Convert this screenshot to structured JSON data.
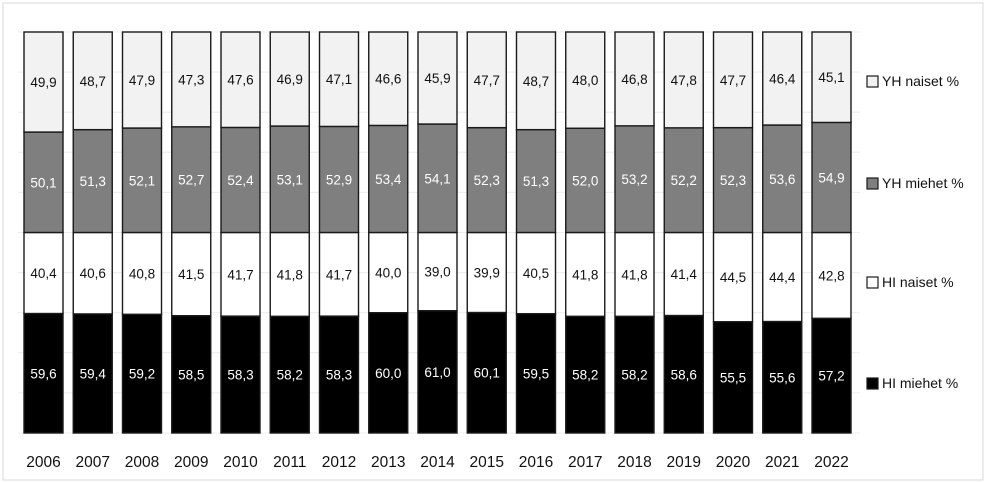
{
  "chart_data": {
    "type": "bar",
    "stacked": true,
    "categories": [
      "2006",
      "2007",
      "2008",
      "2009",
      "2010",
      "2011",
      "2012",
      "2013",
      "2014",
      "2015",
      "2016",
      "2017",
      "2018",
      "2019",
      "2020",
      "2021",
      "2022"
    ],
    "series": [
      {
        "name": "HI miehet %",
        "color": "#000000",
        "text_color": "#ffffff",
        "values": [
          59.6,
          59.4,
          59.2,
          58.5,
          58.3,
          58.2,
          58.3,
          60.0,
          61.0,
          60.1,
          59.5,
          58.2,
          58.2,
          58.6,
          55.5,
          55.6,
          57.2
        ],
        "labels": [
          "59,6",
          "59,4",
          "59,2",
          "58,5",
          "58,3",
          "58,2",
          "58,3",
          "60,0",
          "61,0",
          "60,1",
          "59,5",
          "58,2",
          "58,2",
          "58,6",
          "55,5",
          "55,6",
          "57,2"
        ]
      },
      {
        "name": "HI naiset %",
        "color": "#ffffff",
        "text_color": "#111111",
        "values": [
          40.4,
          40.6,
          40.8,
          41.5,
          41.7,
          41.8,
          41.7,
          40.0,
          39.0,
          39.9,
          40.5,
          41.8,
          41.8,
          41.4,
          44.5,
          44.4,
          42.8
        ],
        "labels": [
          "40,4",
          "40,6",
          "40,8",
          "41,5",
          "41,7",
          "41,8",
          "41,7",
          "40,0",
          "39,0",
          "39,9",
          "40,5",
          "41,8",
          "41,8",
          "41,4",
          "44,5",
          "44,4",
          "42,8"
        ]
      },
      {
        "name": "YH miehet %",
        "color": "#7f7f7f",
        "text_color": "#ffffff",
        "values": [
          50.1,
          51.3,
          52.1,
          52.7,
          52.4,
          53.1,
          52.9,
          53.4,
          54.1,
          52.3,
          51.3,
          52.0,
          53.2,
          52.2,
          52.3,
          53.6,
          54.9
        ],
        "labels": [
          "50,1",
          "51,3",
          "52,1",
          "52,7",
          "52,4",
          "53,1",
          "52,9",
          "53,4",
          "54,1",
          "52,3",
          "51,3",
          "52,0",
          "53,2",
          "52,2",
          "52,3",
          "53,6",
          "54,9"
        ]
      },
      {
        "name": "YH naiset %",
        "color": "#f2f2f2",
        "text_color": "#111111",
        "values": [
          49.9,
          48.7,
          47.9,
          47.3,
          47.6,
          46.9,
          47.1,
          46.6,
          45.9,
          47.7,
          48.7,
          48.0,
          46.8,
          47.8,
          47.7,
          46.4,
          45.1
        ],
        "labels": [
          "49,9",
          "48,7",
          "47,9",
          "47,3",
          "47,6",
          "46,9",
          "47,1",
          "46,6",
          "45,9",
          "47,7",
          "48,7",
          "48,0",
          "46,8",
          "47,8",
          "47,7",
          "46,4",
          "45,1"
        ]
      }
    ],
    "group_total": 100,
    "legend_position": "right",
    "grid": true
  }
}
